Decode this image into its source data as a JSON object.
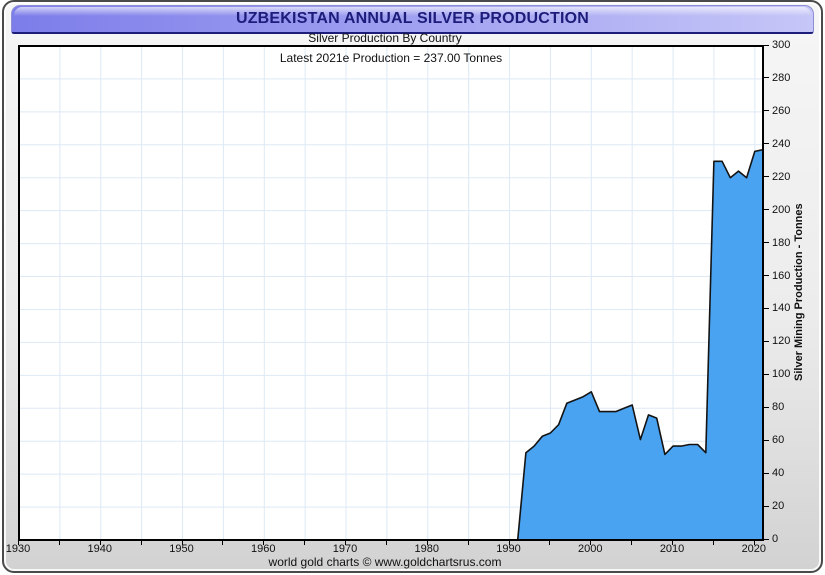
{
  "window": {
    "title": "UZBEKISTAN ANNUAL SILVER PRODUCTION"
  },
  "header": {
    "subtitle": "Silver Production By Country",
    "annotation": "Latest 2021e Production = 237.00 Tonnes"
  },
  "footer": {
    "credit": "world gold charts © www.goldchartsrus.com"
  },
  "chart_data": {
    "type": "area",
    "title": "Silver Production By Country",
    "annotation": "Latest 2021e Production = 237.00 Tonnes",
    "xlabel": "",
    "ylabel": "Silver Mining Production - Tonnes",
    "xlim": [
      1930,
      2021
    ],
    "ylim": [
      0,
      300
    ],
    "x_label_ticks": [
      1930,
      1940,
      1950,
      1960,
      1970,
      1980,
      1990,
      2000,
      2010,
      2020
    ],
    "x_minor_tick_step": 5,
    "y_tick_step": 20,
    "grid": true,
    "legend": "none",
    "series": [
      {
        "name": "Uzbekistan annual silver production (tonnes)",
        "x": [
          1991,
          1992,
          1993,
          1994,
          1995,
          1996,
          1997,
          1998,
          1999,
          2000,
          2001,
          2002,
          2003,
          2004,
          2005,
          2006,
          2007,
          2008,
          2009,
          2010,
          2011,
          2012,
          2013,
          2014,
          2015,
          2016,
          2017,
          2018,
          2019,
          2020,
          2021
        ],
        "values": [
          0,
          53,
          57,
          63,
          65,
          70,
          83,
          85,
          87,
          90,
          78,
          78,
          78,
          80,
          82,
          61,
          76,
          74,
          52,
          57,
          57,
          58,
          58,
          53,
          230,
          230,
          220,
          224,
          220,
          236,
          237
        ]
      }
    ],
    "latest_year": "2021e",
    "latest_value_tonnes": 237.0,
    "colors": {
      "area_fill": "#49a3f1",
      "line": "#141414",
      "grid": "#dde9f5",
      "plot_border": "#000000",
      "title_text": "#1c1c7a",
      "titlebar_left": "#7d7dea",
      "titlebar_right": "#c6c6f8"
    }
  }
}
